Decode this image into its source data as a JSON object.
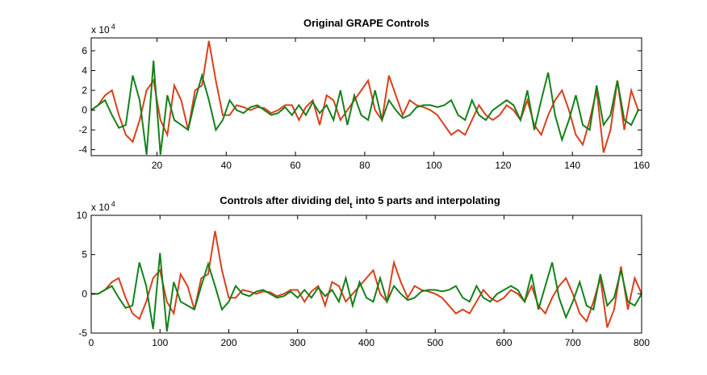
{
  "chart_data": [
    {
      "type": "line",
      "title": "Original GRAPE Controls",
      "y_multiplier": "x 10",
      "y_exponent": "4",
      "xlim": [
        1,
        160
      ],
      "ylim": [
        -4.6,
        7.3
      ],
      "xticks": [
        20,
        40,
        60,
        80,
        100,
        120,
        140,
        160
      ],
      "yticks": [
        -4,
        -2,
        0,
        2,
        4,
        6
      ],
      "x": [
        1,
        3,
        5,
        7,
        9,
        11,
        13,
        15,
        17,
        19,
        21,
        23,
        25,
        27,
        29,
        31,
        33,
        35,
        37,
        39,
        41,
        43,
        45,
        47,
        49,
        51,
        53,
        55,
        57,
        59,
        61,
        63,
        65,
        67,
        69,
        71,
        73,
        75,
        77,
        79,
        81,
        83,
        85,
        87,
        89,
        91,
        93,
        95,
        97,
        99,
        101,
        103,
        105,
        107,
        109,
        111,
        113,
        115,
        117,
        119,
        121,
        123,
        125,
        127,
        129,
        131,
        133,
        135,
        137,
        139,
        141,
        143,
        145,
        147,
        149,
        151,
        153,
        155,
        157,
        159
      ],
      "series": [
        {
          "color": "#d8401c",
          "values": [
            0,
            0.5,
            1.5,
            2,
            -0.5,
            -2.5,
            -3.2,
            -1,
            2,
            3,
            -1,
            -2.5,
            2.5,
            1,
            -2,
            2,
            2.5,
            7,
            3,
            -0.5,
            -0.5,
            0.5,
            0.3,
            0,
            0.3,
            0.2,
            -0.3,
            0,
            0.5,
            0.5,
            -1,
            0.3,
            1,
            -1.5,
            1.5,
            1,
            -1,
            0,
            1,
            2,
            3,
            0,
            -1,
            3.5,
            1.5,
            -0.5,
            1,
            0.5,
            0.3,
            0,
            -0.5,
            -1.5,
            -2.5,
            -2,
            -2.5,
            -1,
            0.5,
            -0.5,
            -1,
            -0.5,
            0.5,
            0,
            -1,
            1,
            -1.5,
            -2.5,
            -0.5,
            1,
            2,
            0,
            -2.5,
            -3.5,
            -1,
            2,
            -4.3,
            -2,
            3,
            -2,
            2,
            0
          ]
        },
        {
          "color": "#15801a",
          "values": [
            0,
            0.5,
            1,
            -0.5,
            -1.8,
            -1.5,
            3.5,
            1,
            -4.5,
            5,
            -4.5,
            1.5,
            -1,
            -1.5,
            -2,
            1,
            3.5,
            1,
            -2,
            -1,
            1,
            0,
            -0.3,
            0.3,
            0.5,
            0,
            -0.5,
            -0.3,
            0.3,
            -0.5,
            0.5,
            -0.5,
            0.8,
            -0.3,
            0.5,
            -1,
            2,
            -1.5,
            1.5,
            -0.5,
            -1,
            2,
            -1,
            1,
            0,
            -0.8,
            -0.5,
            0.3,
            0.5,
            0.5,
            0.3,
            0.5,
            1,
            -0.5,
            -1,
            1,
            -0.5,
            -1,
            0,
            0.5,
            1,
            0.5,
            -1,
            2,
            -2,
            1,
            3.8,
            -0.5,
            -3,
            -1,
            1.5,
            -1.5,
            -2,
            2.5,
            -1.5,
            -0.5,
            3,
            -1,
            -1.5,
            0
          ]
        }
      ]
    },
    {
      "type": "line",
      "title": "Controls after dividing del",
      "title_subscript": "t",
      "title_suffix": "into 5 parts and interpolating",
      "y_multiplier": "x 10",
      "y_exponent": "4",
      "xlim": [
        0,
        800
      ],
      "ylim": [
        -5,
        10
      ],
      "xticks": [
        0,
        100,
        200,
        300,
        400,
        500,
        600,
        700,
        800
      ],
      "yticks": [
        -5,
        0,
        5,
        10
      ],
      "x": [
        0,
        10,
        20,
        30,
        40,
        50,
        60,
        70,
        80,
        90,
        100,
        110,
        120,
        130,
        140,
        150,
        160,
        170,
        180,
        190,
        200,
        210,
        220,
        230,
        240,
        250,
        260,
        270,
        280,
        290,
        300,
        310,
        320,
        330,
        340,
        350,
        360,
        370,
        380,
        390,
        400,
        410,
        420,
        430,
        440,
        450,
        460,
        470,
        480,
        490,
        500,
        510,
        520,
        530,
        540,
        550,
        560,
        570,
        580,
        590,
        600,
        610,
        620,
        630,
        640,
        650,
        660,
        670,
        680,
        690,
        700,
        710,
        720,
        730,
        740,
        750,
        760,
        770,
        780,
        790,
        800
      ],
      "series": [
        {
          "color": "#d8401c",
          "values": [
            0,
            0,
            0.5,
            1.5,
            2,
            -0.5,
            -2.5,
            -3.2,
            -1,
            2,
            3,
            -1,
            -2.5,
            2.5,
            1,
            -2,
            2,
            2.5,
            8,
            3,
            -0.5,
            -0.5,
            0.5,
            0.3,
            0,
            0.3,
            0.2,
            -0.3,
            0,
            0.5,
            0.5,
            -1,
            0.3,
            1,
            -1.5,
            1.5,
            1,
            -1,
            0,
            1,
            2,
            3,
            0,
            -1,
            4,
            1.5,
            -0.5,
            1,
            0.5,
            0.3,
            0,
            -0.5,
            -1.5,
            -2.5,
            -2,
            -2.5,
            -1,
            0.5,
            -0.5,
            -1,
            -0.5,
            0.5,
            0,
            -1,
            1,
            -1.5,
            -2.5,
            -0.5,
            1,
            2,
            0,
            -2.5,
            -3.5,
            -1,
            2,
            -4.3,
            -2,
            3.5,
            -2,
            2,
            0
          ]
        },
        {
          "color": "#15801a",
          "values": [
            0,
            0,
            0.5,
            1,
            -0.5,
            -1.8,
            -1.5,
            4,
            1,
            -4.5,
            5.2,
            -4.8,
            1.5,
            -1,
            -1.5,
            -2,
            1,
            3.8,
            1,
            -2,
            -1,
            1,
            0,
            -0.3,
            0.3,
            0.5,
            0,
            -0.5,
            -0.3,
            0.3,
            -0.5,
            0.5,
            -0.5,
            0.8,
            -0.3,
            0.5,
            -1,
            2,
            -1.5,
            1.5,
            -0.5,
            -1,
            2,
            -1,
            1,
            0,
            -0.8,
            -0.5,
            0.3,
            0.5,
            0.5,
            0.3,
            0.5,
            1,
            -0.5,
            -1,
            1,
            -0.5,
            -1,
            0,
            0.5,
            1,
            0.5,
            -1,
            2.5,
            -2,
            1,
            4,
            -0.5,
            -3,
            -1,
            1.5,
            -1.5,
            -2,
            2.5,
            -1.5,
            -0.5,
            3,
            -1,
            -1.5,
            0
          ]
        }
      ]
    }
  ]
}
